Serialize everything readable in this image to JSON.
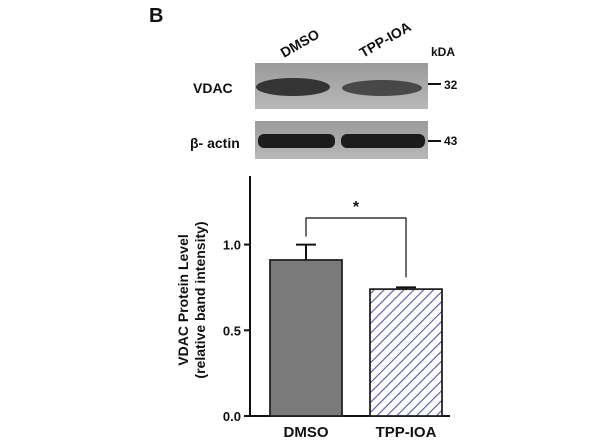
{
  "figure": {
    "panel_letter": "B",
    "blot": {
      "lane_labels": [
        "DMSO",
        "TPP-IOA"
      ],
      "kda_header": "kDA",
      "rows": [
        {
          "label": "VDAC",
          "kda": "32"
        },
        {
          "label": "β- actin",
          "kda": "43"
        }
      ]
    }
  },
  "chart_data": {
    "type": "bar",
    "categories": [
      "DMSO",
      "TPP-IOA"
    ],
    "values": [
      0.91,
      0.74
    ],
    "errors": [
      0.09,
      0.01
    ],
    "ylabel_line1": "VDAC Protein Level",
    "ylabel_line2": "(relative band intensity)",
    "ylim": [
      0,
      1.4
    ],
    "yticks": [
      0.0,
      0.5,
      1.0
    ],
    "ytick_labels": [
      "0.0",
      "0.5",
      "1.0"
    ],
    "significance": "*",
    "bar_styles": [
      "solid",
      "hatched"
    ],
    "colors": {
      "solid": "#7a7a7a",
      "hatch": "#5555aa",
      "axis": "#111111"
    }
  }
}
